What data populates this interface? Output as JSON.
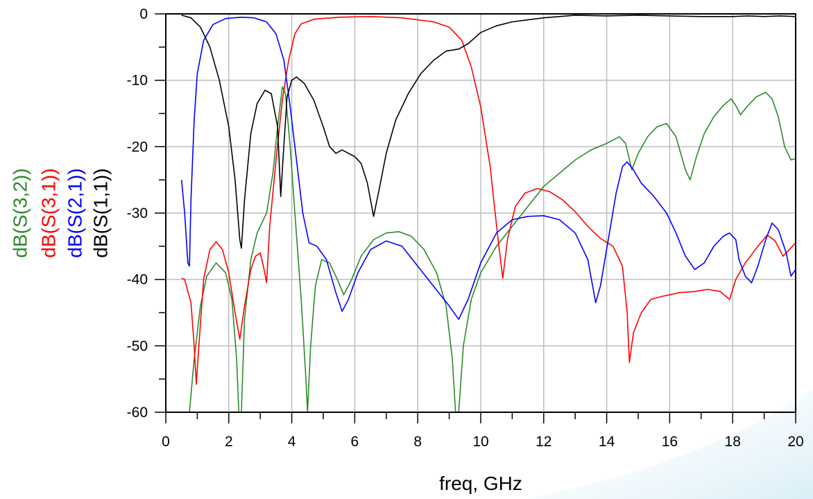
{
  "chart_data": {
    "type": "line",
    "xlabel": "freq, GHz",
    "ylabel": "",
    "xlim": [
      0,
      20
    ],
    "ylim": [
      -60,
      0
    ],
    "xticks": [
      "0",
      "2",
      "4",
      "6",
      "8",
      "10",
      "12",
      "14",
      "16",
      "18",
      "20"
    ],
    "yticks": [
      "0",
      "-10",
      "-20",
      "-30",
      "-40",
      "-50",
      "-60"
    ],
    "grid": true,
    "legend_position": "left, vertical",
    "series": [
      {
        "name": "dB(S(3,2))",
        "color": "#2a8a2a",
        "points": [
          [
            0.75,
            -60
          ],
          [
            0.9,
            -52
          ],
          [
            1.1,
            -44
          ],
          [
            1.3,
            -39.5
          ],
          [
            1.6,
            -37.5
          ],
          [
            1.9,
            -39
          ],
          [
            2.1,
            -43
          ],
          [
            2.25,
            -52
          ],
          [
            2.32,
            -60
          ],
          [
            2.4,
            -60
          ],
          [
            2.5,
            -46
          ],
          [
            2.7,
            -37
          ],
          [
            2.9,
            -33
          ],
          [
            3.2,
            -30
          ],
          [
            3.4,
            -24
          ],
          [
            3.55,
            -17
          ],
          [
            3.7,
            -11
          ],
          [
            3.8,
            -12
          ],
          [
            3.95,
            -20
          ],
          [
            4.1,
            -30
          ],
          [
            4.3,
            -43
          ],
          [
            4.45,
            -55
          ],
          [
            4.5,
            -60
          ],
          [
            4.6,
            -50
          ],
          [
            4.75,
            -41
          ],
          [
            4.95,
            -37
          ],
          [
            5.2,
            -37.5
          ],
          [
            5.45,
            -40
          ],
          [
            5.65,
            -42.3
          ],
          [
            5.9,
            -40
          ],
          [
            6.2,
            -36.5
          ],
          [
            6.6,
            -34
          ],
          [
            7,
            -33
          ],
          [
            7.4,
            -32.8
          ],
          [
            7.8,
            -33.5
          ],
          [
            8.2,
            -35.5
          ],
          [
            8.6,
            -39
          ],
          [
            8.9,
            -44
          ],
          [
            9.1,
            -52
          ],
          [
            9.2,
            -60
          ],
          [
            9.3,
            -60
          ],
          [
            9.45,
            -50
          ],
          [
            9.7,
            -43
          ],
          [
            10,
            -39
          ],
          [
            10.5,
            -35
          ],
          [
            11,
            -32
          ],
          [
            11.5,
            -29
          ],
          [
            12,
            -26
          ],
          [
            12.5,
            -24
          ],
          [
            13,
            -22
          ],
          [
            13.5,
            -20.5
          ],
          [
            14,
            -19.5
          ],
          [
            14.4,
            -18.5
          ],
          [
            14.6,
            -19.5
          ],
          [
            14.8,
            -23.5
          ],
          [
            15,
            -21
          ],
          [
            15.3,
            -18.5
          ],
          [
            15.6,
            -17
          ],
          [
            15.9,
            -16.5
          ],
          [
            16.2,
            -18.5
          ],
          [
            16.5,
            -23.5
          ],
          [
            16.65,
            -25
          ],
          [
            16.85,
            -21.5
          ],
          [
            17.1,
            -18
          ],
          [
            17.4,
            -15.5
          ],
          [
            17.7,
            -13.8
          ],
          [
            17.95,
            -12.8
          ],
          [
            18.1,
            -13.8
          ],
          [
            18.25,
            -15.2
          ],
          [
            18.45,
            -14
          ],
          [
            18.75,
            -12.5
          ],
          [
            19.05,
            -11.8
          ],
          [
            19.25,
            -12.8
          ],
          [
            19.45,
            -15.5
          ],
          [
            19.65,
            -20
          ],
          [
            19.85,
            -22
          ],
          [
            20,
            -21.8
          ]
        ]
      },
      {
        "name": "dB(S(3,1))",
        "color": "#ff0000",
        "points": [
          [
            0.5,
            -39.8
          ],
          [
            0.6,
            -40
          ],
          [
            0.8,
            -43.5
          ],
          [
            0.9,
            -50
          ],
          [
            0.97,
            -55.8
          ],
          [
            1.05,
            -50
          ],
          [
            1.2,
            -40
          ],
          [
            1.4,
            -35.5
          ],
          [
            1.6,
            -34.3
          ],
          [
            1.8,
            -35.5
          ],
          [
            2,
            -39
          ],
          [
            2.2,
            -45
          ],
          [
            2.35,
            -49
          ],
          [
            2.5,
            -44
          ],
          [
            2.7,
            -38.5
          ],
          [
            2.85,
            -36.5
          ],
          [
            3,
            -36
          ],
          [
            3.1,
            -38
          ],
          [
            3.2,
            -40.5
          ],
          [
            3.3,
            -32
          ],
          [
            3.5,
            -22
          ],
          [
            3.7,
            -13
          ],
          [
            3.9,
            -7
          ],
          [
            4.1,
            -3
          ],
          [
            4.3,
            -1.5
          ],
          [
            4.7,
            -0.8
          ],
          [
            5.5,
            -0.5
          ],
          [
            6.5,
            -0.4
          ],
          [
            7.5,
            -0.6
          ],
          [
            8.5,
            -1.2
          ],
          [
            9,
            -2
          ],
          [
            9.4,
            -4
          ],
          [
            9.7,
            -8
          ],
          [
            10,
            -14
          ],
          [
            10.3,
            -23
          ],
          [
            10.55,
            -34
          ],
          [
            10.7,
            -39.8
          ],
          [
            10.85,
            -34
          ],
          [
            11.1,
            -29
          ],
          [
            11.4,
            -27
          ],
          [
            11.8,
            -26.3
          ],
          [
            12.2,
            -26.8
          ],
          [
            12.6,
            -28
          ],
          [
            13,
            -29.8
          ],
          [
            13.4,
            -32
          ],
          [
            13.8,
            -33.8
          ],
          [
            14.2,
            -35
          ],
          [
            14.5,
            -38
          ],
          [
            14.65,
            -45
          ],
          [
            14.72,
            -52.5
          ],
          [
            14.85,
            -48
          ],
          [
            15.1,
            -45
          ],
          [
            15.4,
            -43
          ],
          [
            15.8,
            -42.5
          ],
          [
            16.3,
            -42
          ],
          [
            16.8,
            -41.8
          ],
          [
            17.2,
            -41.5
          ],
          [
            17.6,
            -41.8
          ],
          [
            17.9,
            -43
          ],
          [
            18.1,
            -40
          ],
          [
            18.4,
            -37.5
          ],
          [
            18.8,
            -35
          ],
          [
            19.1,
            -33.3
          ],
          [
            19.35,
            -34.2
          ],
          [
            19.6,
            -36.5
          ],
          [
            19.8,
            -35.5
          ],
          [
            20,
            -34.5
          ]
        ]
      },
      {
        "name": "dB(S(2,1))",
        "color": "#0000ff",
        "points": [
          [
            0.5,
            -25
          ],
          [
            0.6,
            -30
          ],
          [
            0.7,
            -37.5
          ],
          [
            0.75,
            -38
          ],
          [
            0.8,
            -28
          ],
          [
            0.9,
            -16
          ],
          [
            1,
            -9
          ],
          [
            1.2,
            -4
          ],
          [
            1.5,
            -1.6
          ],
          [
            1.9,
            -0.7
          ],
          [
            2.4,
            -0.5
          ],
          [
            2.8,
            -0.6
          ],
          [
            3.2,
            -1.2
          ],
          [
            3.5,
            -3
          ],
          [
            3.75,
            -7
          ],
          [
            3.95,
            -14
          ],
          [
            4.15,
            -22
          ],
          [
            4.35,
            -30
          ],
          [
            4.55,
            -34.5
          ],
          [
            4.8,
            -35
          ],
          [
            5.1,
            -37
          ],
          [
            5.4,
            -42
          ],
          [
            5.6,
            -44.8
          ],
          [
            5.8,
            -43
          ],
          [
            6.1,
            -39
          ],
          [
            6.5,
            -35.5
          ],
          [
            7,
            -34.2
          ],
          [
            7.5,
            -35
          ],
          [
            8,
            -38
          ],
          [
            8.5,
            -41
          ],
          [
            9,
            -44
          ],
          [
            9.3,
            -46
          ],
          [
            9.6,
            -43
          ],
          [
            10,
            -37.5
          ],
          [
            10.5,
            -33
          ],
          [
            11,
            -31
          ],
          [
            11.5,
            -30.5
          ],
          [
            12,
            -30.4
          ],
          [
            12.5,
            -31
          ],
          [
            13,
            -33
          ],
          [
            13.4,
            -37
          ],
          [
            13.65,
            -43.5
          ],
          [
            13.8,
            -41
          ],
          [
            14.05,
            -34
          ],
          [
            14.3,
            -27
          ],
          [
            14.5,
            -23
          ],
          [
            14.65,
            -22.3
          ],
          [
            14.85,
            -23.5
          ],
          [
            15.1,
            -25.5
          ],
          [
            15.5,
            -27.5
          ],
          [
            15.9,
            -30
          ],
          [
            16.2,
            -33
          ],
          [
            16.5,
            -36.5
          ],
          [
            16.8,
            -38.5
          ],
          [
            17.1,
            -37.5
          ],
          [
            17.4,
            -35
          ],
          [
            17.7,
            -33.5
          ],
          [
            17.9,
            -33
          ],
          [
            18.1,
            -34
          ],
          [
            18.2,
            -37
          ],
          [
            18.4,
            -39.5
          ],
          [
            18.6,
            -40.5
          ],
          [
            18.8,
            -38
          ],
          [
            19.05,
            -34
          ],
          [
            19.25,
            -31.5
          ],
          [
            19.45,
            -32.5
          ],
          [
            19.7,
            -36
          ],
          [
            19.85,
            -39.5
          ],
          [
            20,
            -38.5
          ]
        ]
      },
      {
        "name": "dB(S(1,1))",
        "color": "#000000",
        "points": [
          [
            0.5,
            -0.2
          ],
          [
            0.8,
            -0.6
          ],
          [
            1.1,
            -2
          ],
          [
            1.4,
            -5
          ],
          [
            1.7,
            -10
          ],
          [
            2,
            -17
          ],
          [
            2.2,
            -25
          ],
          [
            2.35,
            -34
          ],
          [
            2.4,
            -35.3
          ],
          [
            2.5,
            -28
          ],
          [
            2.7,
            -18
          ],
          [
            2.9,
            -13.5
          ],
          [
            3.15,
            -11.5
          ],
          [
            3.35,
            -12
          ],
          [
            3.55,
            -17
          ],
          [
            3.65,
            -27.5
          ],
          [
            3.72,
            -22
          ],
          [
            3.85,
            -12.5
          ],
          [
            4,
            -10
          ],
          [
            4.15,
            -9.5
          ],
          [
            4.4,
            -10.5
          ],
          [
            4.7,
            -13
          ],
          [
            5,
            -17
          ],
          [
            5.2,
            -20
          ],
          [
            5.4,
            -21
          ],
          [
            5.6,
            -20.5
          ],
          [
            5.8,
            -21
          ],
          [
            6,
            -21.5
          ],
          [
            6.2,
            -22.5
          ],
          [
            6.4,
            -25.5
          ],
          [
            6.6,
            -30.5
          ],
          [
            6.75,
            -27
          ],
          [
            7,
            -21
          ],
          [
            7.3,
            -16
          ],
          [
            7.7,
            -12
          ],
          [
            8.1,
            -9
          ],
          [
            8.5,
            -7
          ],
          [
            8.9,
            -5.6
          ],
          [
            9.3,
            -5.3
          ],
          [
            9.6,
            -4.5
          ],
          [
            10,
            -2.8
          ],
          [
            10.5,
            -1.8
          ],
          [
            11,
            -1.2
          ],
          [
            11.5,
            -0.9
          ],
          [
            12,
            -0.6
          ],
          [
            12.5,
            -0.4
          ],
          [
            13,
            -0.2
          ],
          [
            14,
            -0.3
          ],
          [
            15,
            -0.2
          ],
          [
            16,
            -0.3
          ],
          [
            17,
            -0.4
          ],
          [
            18,
            -0.4
          ],
          [
            18.5,
            -0.3
          ],
          [
            19,
            -0.4
          ],
          [
            19.5,
            -0.3
          ],
          [
            20,
            -0.4
          ]
        ]
      }
    ]
  }
}
